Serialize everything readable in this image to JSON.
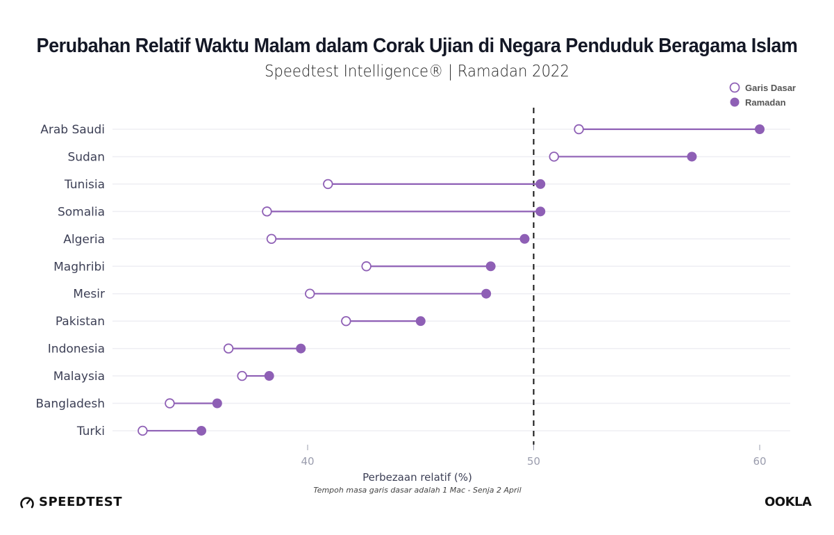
{
  "header": {
    "title": "Perubahan Relatif Waktu Malam dalam Corak Ujian di Negara Penduduk Beragama Islam",
    "subtitle": "Speedtest Intelligence® | Ramadan 2022"
  },
  "colors": {
    "accent": "#8e5fb5",
    "gridline": "#eeeef3",
    "reference_line": "#111111",
    "tick_label": "#9a9cad",
    "category_label": "#3c3f55"
  },
  "chart_data": {
    "type": "dumbbell",
    "title": "Perubahan Relatif Waktu Malam dalam Corak Ujian di Negara Penduduk Beragama Islam",
    "subtitle": "Speedtest Intelligence® | Ramadan 2022",
    "xlabel": "Perbezaan relatif (%)",
    "caption": "Tempoh masa garis dasar adalah 1 Mac - Senja 2 April",
    "xlim": [
      30.9,
      61.3
    ],
    "xticks": [
      40,
      50,
      60
    ],
    "reference_line": 50,
    "grid": "horizontal",
    "legend_position": "top-right",
    "categories": [
      "Arab Saudi",
      "Sudan",
      "Tunisia",
      "Somalia",
      "Algeria",
      "Maghribi",
      "Mesir",
      "Pakistan",
      "Indonesia",
      "Malaysia",
      "Bangladesh",
      "Turki"
    ],
    "series": [
      {
        "name": "Garis Dasar",
        "marker": "open-circle",
        "values": [
          52.0,
          50.9,
          40.9,
          38.2,
          38.4,
          42.6,
          40.1,
          41.7,
          36.5,
          37.1,
          33.9,
          32.7
        ]
      },
      {
        "name": "Ramadan",
        "marker": "filled-circle",
        "values": [
          60.0,
          57.0,
          50.3,
          50.3,
          49.6,
          48.1,
          47.9,
          45.0,
          39.7,
          38.3,
          36.0,
          35.3
        ]
      }
    ]
  },
  "branding": {
    "left_logo": "SPEEDTEST",
    "right_logo": "OOKLA"
  }
}
